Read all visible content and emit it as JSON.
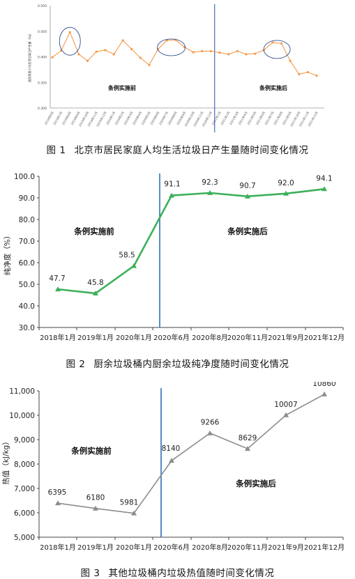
{
  "figures": [
    {
      "num": "图 1",
      "title": "北京市居民家庭人均生活垃圾日产生量随时间变化情况"
    },
    {
      "num": "图 2",
      "title": "厨余垃圾桶内厨余垃圾纯净度随时间变化情况"
    },
    {
      "num": "图 3",
      "title": "其他垃圾桶内垃圾热值随时间变化情况"
    }
  ],
  "chart_data": [
    {
      "type": "line",
      "title": "",
      "ylabel": "居民家庭人均生活垃圾日产生量（kg）",
      "ylim": [
        0.3,
        0.5
      ],
      "yticks": [
        "0.300",
        "0.350",
        "0.400",
        "0.450",
        "0.500"
      ],
      "x": [
        "2019年6月",
        "2019年7月",
        "2019年8月",
        "2019年9月",
        "2019年10月",
        "2019年11月",
        "2019年12月",
        "2020年1月",
        "2020年2月",
        "2020年3月",
        "2020年4月",
        "2020年5月",
        "2020年6月",
        "2020年7月",
        "2020年8月",
        "2020年9月",
        "2020年10月",
        "2020年11月",
        "2020年12月",
        "2021年1月",
        "2021年2月",
        "2021年3月",
        "2021年4月",
        "2021年5月",
        "2021年6月",
        "2021年7月",
        "2021年8月",
        "2021年9月",
        "2021年10月",
        "2021年11月",
        "2021年12月"
      ],
      "values": [
        0.399,
        0.412,
        0.448,
        0.405,
        0.392,
        0.41,
        0.413,
        0.405,
        0.432,
        0.415,
        0.398,
        0.384,
        0.415,
        0.432,
        0.433,
        0.419,
        0.409,
        0.411,
        0.411,
        0.408,
        0.405,
        0.411,
        0.405,
        0.406,
        0.413,
        0.428,
        0.426,
        0.392,
        0.366,
        0.37,
        0.363
      ],
      "divider_after_index": 18,
      "line_color": "#f39a4a",
      "divider_color": "#3b6fb6",
      "circle_color": "#2f4f8f",
      "annotations": [
        "条例实施前",
        "条例实施后"
      ],
      "grid": false
    },
    {
      "type": "line",
      "title": "",
      "ylabel": "纯净度（%）",
      "ylim": [
        30,
        100
      ],
      "yticks": [
        "30.0",
        "40.0",
        "50.0",
        "60.0",
        "70.0",
        "80.0",
        "90.0",
        "100.0"
      ],
      "categories": [
        "2018年1月",
        "2019年1月",
        "2020年1月",
        "2020年6月",
        "2020年8月",
        "2020年11月",
        "2021年9月",
        "2021年12月"
      ],
      "values": [
        47.7,
        45.8,
        58.5,
        91.1,
        92.3,
        90.7,
        92.0,
        94.1
      ],
      "value_labels": [
        "47.7",
        "45.8",
        "58.5",
        "91.1",
        "92.3",
        "90.7",
        "92.0",
        "94.1"
      ],
      "marker": "triangle",
      "line_color": "#3cb05a",
      "divider_color": "#2d6fb8",
      "annotations": [
        "条例实施前",
        "条例实施后"
      ],
      "grid": false
    },
    {
      "type": "line",
      "title": "",
      "ylabel": "热值（kJ/kg）",
      "ylim": [
        5000,
        11000
      ],
      "yticks": [
        "5,000",
        "6,000",
        "7,000",
        "8,000",
        "9,000",
        "10,000",
        "11,000"
      ],
      "categories": [
        "2018年1月",
        "2019年1月",
        "2020年1月",
        "2020年6月",
        "2020年8月",
        "2020年11月",
        "2021年9月",
        "2021年12月"
      ],
      "values": [
        6395,
        6180,
        5981,
        8140,
        9266,
        8629,
        10007,
        10860
      ],
      "value_labels": [
        "6395",
        "6180",
        "5981",
        "8140",
        "9266",
        "8629",
        "10007",
        "10860"
      ],
      "marker": "triangle",
      "line_color": "#8c8c8c",
      "divider_color": "#2d6fb8",
      "annotations": [
        "条例实施前",
        "条例实施后"
      ],
      "grid": false
    }
  ]
}
